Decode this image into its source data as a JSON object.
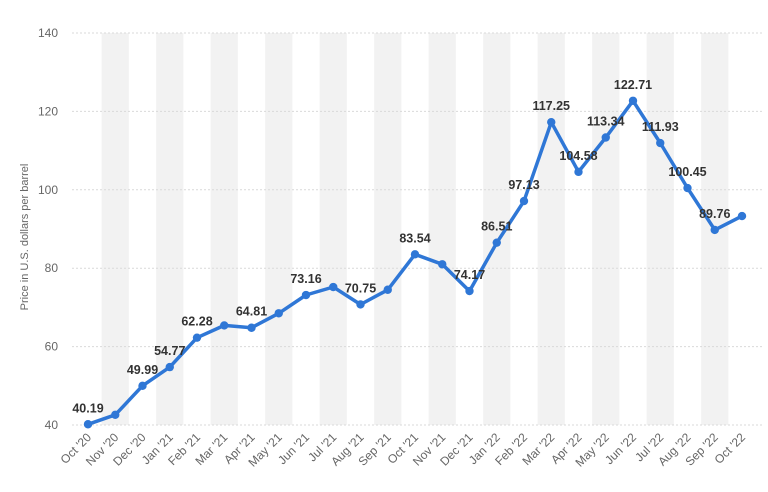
{
  "chart_data": {
    "type": "line",
    "title": "",
    "xlabel": "",
    "ylabel": "Price in U.S. dollars per barrel",
    "ylim": [
      40,
      140
    ],
    "yticks": [
      40,
      60,
      80,
      100,
      120,
      140
    ],
    "grid": true,
    "categories": [
      "Oct '20",
      "Nov '20",
      "Dec '20",
      "Jan '21",
      "Feb '21",
      "Mar '21",
      "Apr '21",
      "May '21",
      "Jun '21",
      "Jul '21",
      "Aug '21",
      "Sep '21",
      "Oct '21",
      "Nov '21",
      "Dec '21",
      "Jan '22",
      "Feb '22",
      "Mar '22",
      "Apr '22",
      "May '22",
      "Jun '22",
      "Jul '22",
      "Aug '22",
      "Sep '22",
      "Oct '22"
    ],
    "values": [
      40.19,
      42.6,
      49.99,
      54.77,
      62.28,
      65.4,
      64.81,
      68.5,
      73.16,
      75.2,
      70.75,
      74.5,
      83.54,
      81.0,
      74.17,
      86.51,
      97.13,
      117.25,
      104.58,
      113.34,
      122.71,
      111.93,
      100.45,
      89.76,
      93.3
    ],
    "data_labels": [
      "40.19",
      "",
      "49.99",
      "54.77",
      "62.28",
      "",
      "64.81",
      "",
      "73.16",
      "",
      "70.75",
      "",
      "83.54",
      "",
      "74.17",
      "86.51",
      "97.13",
      "117.25",
      "104.58",
      "113.34",
      "122.71",
      "111.93",
      "100.45",
      "89.76",
      ""
    ],
    "line_color": "#2f77d6",
    "band_color": "#f2f2f2"
  }
}
